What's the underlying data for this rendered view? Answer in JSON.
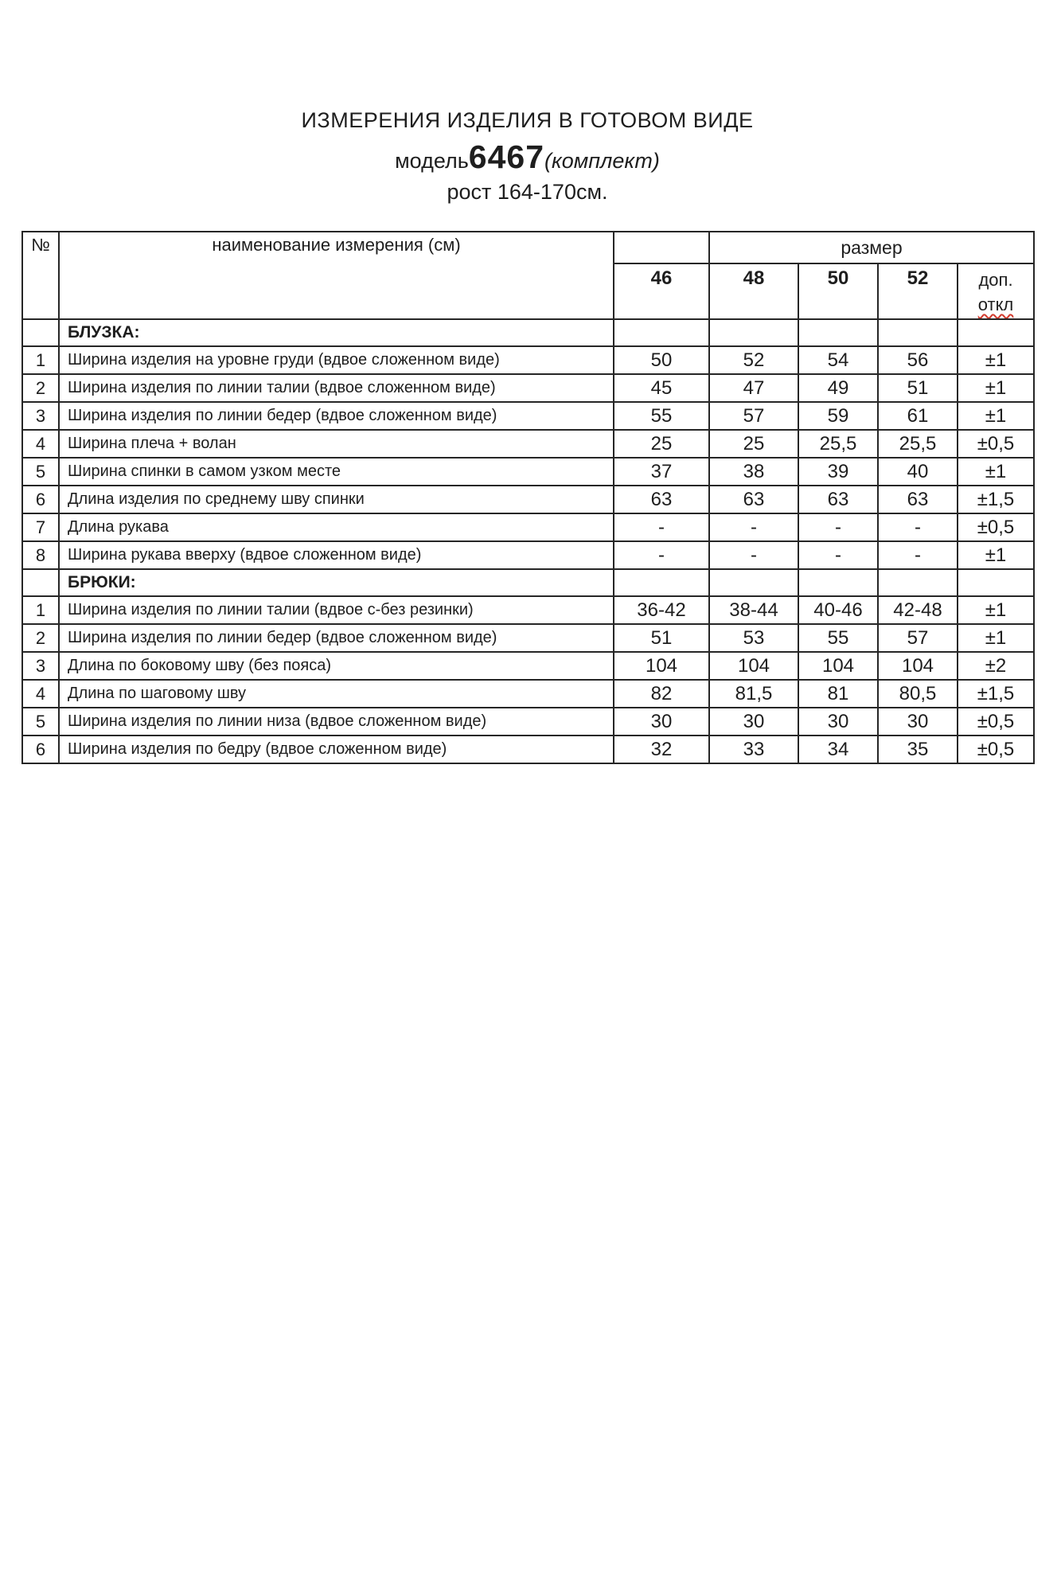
{
  "doc": {
    "title": "ИЗМЕРЕНИЯ ИЗДЕЛИЯ В ГОТОВОМ ВИДЕ",
    "model_prefix": "модель",
    "model_number": "6467",
    "model_suffix": "(комплект)",
    "height_line": "рост 164-170см."
  },
  "table": {
    "header": {
      "num": "№",
      "name": "наименование измерения (см)",
      "size_group": "размер",
      "sizes": [
        "46",
        "48",
        "50",
        "52"
      ],
      "dev_line1": "доп.",
      "dev_line2": "откл"
    },
    "sections": [
      {
        "title": "БЛУЗКА:",
        "rows": [
          {
            "num": "1",
            "label": "Ширина изделия на уровне груди (вдвое сложенном виде)",
            "values": [
              "50",
              "52",
              "54",
              "56"
            ],
            "dev": "±1"
          },
          {
            "num": "2",
            "label": "Ширина изделия по линии талии (вдвое сложенном виде)",
            "values": [
              "45",
              "47",
              "49",
              "51"
            ],
            "dev": "±1"
          },
          {
            "num": "3",
            "label": "Ширина изделия по линии бедер (вдвое сложенном виде)",
            "values": [
              "55",
              "57",
              "59",
              "61"
            ],
            "dev": "±1"
          },
          {
            "num": "4",
            "label": "Ширина плеча + волан",
            "values": [
              "25",
              "25",
              "25,5",
              "25,5"
            ],
            "dev": "±0,5"
          },
          {
            "num": "5",
            "label": "Ширина спинки в самом узком месте",
            "values": [
              "37",
              "38",
              "39",
              "40"
            ],
            "dev": "±1"
          },
          {
            "num": "6",
            "label": "Длина изделия по среднему шву спинки",
            "values": [
              "63",
              "63",
              "63",
              "63"
            ],
            "dev": "±1,5"
          },
          {
            "num": "7",
            "label": "Длина рукава",
            "values": [
              "-",
              "-",
              "-",
              "-"
            ],
            "dev": "±0,5"
          },
          {
            "num": "8",
            "label": "Ширина рукава вверху (вдвое сложенном виде)",
            "values": [
              "-",
              "-",
              "-",
              "-"
            ],
            "dev": "±1"
          }
        ]
      },
      {
        "title": "БРЮКИ:",
        "rows": [
          {
            "num": "1",
            "label": "Ширина изделия по линии талии (вдвое с-без резинки)",
            "values": [
              "36-42",
              "38-44",
              "40-46",
              "42-48"
            ],
            "dev": "±1"
          },
          {
            "num": "2",
            "label": "Ширина изделия по линии бедер (вдвое сложенном виде)",
            "values": [
              "51",
              "53",
              "55",
              "57"
            ],
            "dev": "±1"
          },
          {
            "num": "3",
            "label": "Длина по боковому шву (без пояса)",
            "values": [
              "104",
              "104",
              "104",
              "104"
            ],
            "dev": "±2"
          },
          {
            "num": "4",
            "label": "Длина по шаговому шву",
            "values": [
              "82",
              "81,5",
              "81",
              "80,5"
            ],
            "dev": "±1,5"
          },
          {
            "num": "5",
            "label": "Ширина изделия по линии низа (вдвое сложенном виде)",
            "values": [
              "30",
              "30",
              "30",
              "30"
            ],
            "dev": "±0,5"
          },
          {
            "num": "6",
            "label": "Ширина изделия по бедру (вдвое сложенном виде)",
            "values": [
              "32",
              "33",
              "34",
              "35"
            ],
            "dev": "±0,5"
          }
        ]
      }
    ]
  }
}
